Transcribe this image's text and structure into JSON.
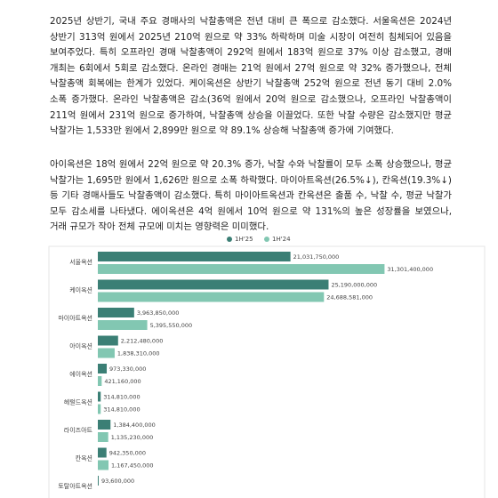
{
  "paragraphs": [
    "2025년 상반기, 국내 주요 경매사의 낙찰총액은 전년 대비 큰 폭으로 감소했다. 서울옥션은 2024년 상반기 313억 원에서 2025년 210억 원으로 약 33% 하락하며 미술 시장이 여전히 침체되어 있음을 보여주었다. 특히 오프라인 경매 낙찰총액이 292억 원에서 183억 원으로 37% 이상 감소했고, 경매 개최는 6회에서 5회로 감소했다. 온라인 경매는 21억 원에서 27억 원으로 약 32% 증가했으나, 전체 낙찰총액 회복에는 한계가 있었다. 케이옥션은 상반기 낙찰총액 252억 원으로 전년 동기 대비 2.0% 소폭 증가했다. 온라인 낙찰총액은 감소(36억 원에서 20억 원으로 감소했으나, 오프라인 낙찰총액이 211억 원에서 231억 원으로 증가하여, 낙찰총액 상승을 이끌었다. 또한 낙찰 수량은 감소했지만 평균 낙찰가는 1,533만 원에서 2,899만 원으로 약 89.1% 상승해 낙찰총액 증가에 기여했다.",
    "아이옥션은 18억 원에서 22억 원으로 약 20.3% 증가, 낙찰 수와 낙찰률이 모두 소폭 상승했으나, 평균 낙찰가는 1,695만 원에서 1,626만 원으로 소폭 하락했다. 마이아트옥션(26.5%↓), 칸옥션(19.3%↓) 등 기타 경매사들도 낙찰총액이 감소했다. 특히 마이아트옥션과 칸옥션은 출품 수, 낙찰 수, 평균 낙찰가 모두 감소세를 나타냈다. 에이옥션은 4억 원에서 10억 원으로 약 131%의 높은 성장률을 보였으나, 거래 규모가 작아 전체 규모에 미치는 영향력은 미미했다."
  ],
  "chart_data": {
    "type": "hbar",
    "legend_position": "top",
    "categories": [
      "서울옥션",
      "케이옥션",
      "마이아트옥션",
      "아이옥션",
      "에이옥션",
      "헤럴드옥션",
      "라이즈아트",
      "칸옥션",
      "토탈아트옥션"
    ],
    "series": [
      {
        "name": "1H'25",
        "color": "#3b7f75",
        "values": [
          21031750000,
          25190000000,
          3963850000,
          2212480000,
          973330000,
          314810000,
          1384400000,
          942350000,
          93600000
        ],
        "value_labels": [
          "21,031,750,000",
          "25,190,000,000",
          "3,963,850,000",
          "2,212,480,000",
          "973,330,000",
          "314,810,000",
          "1,384,400,000",
          "942,350,000",
          "93,600,000"
        ]
      },
      {
        "name": "1H'24",
        "color": "#82c7b2",
        "values": [
          31301400000,
          24688581000,
          5395550000,
          1838310000,
          421160000,
          314810000,
          1135230000,
          1167450000,
          null
        ],
        "value_labels": [
          "31,301,400,000",
          "24,688,581,000",
          "5,395,550,000",
          "1,838,310,000",
          "421,160,000",
          "314,810,000",
          "1,135,230,000",
          "1,167,450,000",
          null
        ]
      }
    ],
    "xlim": [
      0,
      40000000000
    ]
  }
}
